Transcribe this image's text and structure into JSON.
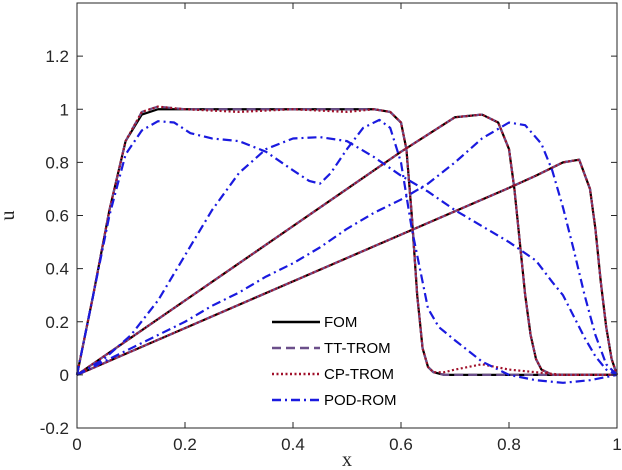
{
  "chart_data": {
    "type": "line",
    "xlabel": "x",
    "ylabel": "u",
    "xlim": [
      0,
      1
    ],
    "ylim": [
      -0.2,
      1.4
    ],
    "xticks": [
      0,
      0.2,
      0.4,
      0.6,
      0.8,
      1
    ],
    "yticks": [
      -0.2,
      0,
      0.2,
      0.4,
      0.6,
      0.8,
      1,
      1.2
    ],
    "xtick_labels": [
      "0",
      "0.2",
      "0.4",
      "0.6",
      "0.8",
      "1"
    ],
    "ytick_labels": [
      "-0.2",
      "0",
      "0.2",
      "0.4",
      "0.6",
      "0.8",
      "1",
      "1.2"
    ],
    "grid": false,
    "legend_position": "bottom-center",
    "legend": [
      {
        "name": "FOM",
        "color": "#000000",
        "dash": "solid"
      },
      {
        "name": "TT-TROM",
        "color": "#6b4f8a",
        "dash": "dashed"
      },
      {
        "name": "CP-TROM",
        "color": "#a0102a",
        "dash": "dotted"
      },
      {
        "name": "POD-ROM",
        "color": "#1a1adf",
        "dash": "dashdot"
      }
    ],
    "series": [
      {
        "name": "FOM",
        "time": "t1",
        "color": "#000000",
        "dash": "solid",
        "x": [
          0,
          0.03,
          0.06,
          0.09,
          0.12,
          0.15,
          0.2,
          0.3,
          0.4,
          0.5,
          0.55,
          0.58,
          0.6,
          0.61,
          0.62,
          0.63,
          0.64,
          0.65,
          0.66,
          0.68,
          0.7,
          0.8,
          0.9,
          1.0
        ],
        "y": [
          0,
          0.3,
          0.62,
          0.88,
          0.98,
          1.0,
          1.0,
          1.0,
          1.0,
          1.0,
          1.0,
          0.99,
          0.95,
          0.85,
          0.6,
          0.3,
          0.1,
          0.03,
          0.01,
          0,
          0,
          0,
          0,
          0
        ]
      },
      {
        "name": "FOM",
        "time": "t2",
        "color": "#000000",
        "dash": "solid",
        "x": [
          0,
          0.05,
          0.1,
          0.2,
          0.3,
          0.4,
          0.5,
          0.6,
          0.7,
          0.75,
          0.78,
          0.8,
          0.81,
          0.82,
          0.83,
          0.84,
          0.85,
          0.86,
          0.88,
          0.9,
          1.0
        ],
        "y": [
          0,
          0.07,
          0.14,
          0.28,
          0.42,
          0.56,
          0.7,
          0.84,
          0.97,
          0.98,
          0.95,
          0.85,
          0.7,
          0.5,
          0.3,
          0.15,
          0.06,
          0.02,
          0,
          0,
          0
        ]
      },
      {
        "name": "FOM",
        "time": "t3",
        "color": "#000000",
        "dash": "solid",
        "x": [
          0,
          0.1,
          0.2,
          0.3,
          0.4,
          0.5,
          0.6,
          0.7,
          0.8,
          0.85,
          0.9,
          0.93,
          0.95,
          0.96,
          0.97,
          0.98,
          0.99,
          1.0
        ],
        "y": [
          0,
          0.088,
          0.176,
          0.264,
          0.352,
          0.44,
          0.528,
          0.616,
          0.704,
          0.75,
          0.8,
          0.81,
          0.7,
          0.55,
          0.35,
          0.18,
          0.06,
          0
        ]
      },
      {
        "name": "TT-TROM",
        "time": "t1",
        "color": "#6b4f8a",
        "dash": "dashed",
        "x": [
          0,
          0.03,
          0.06,
          0.09,
          0.12,
          0.15,
          0.2,
          0.3,
          0.4,
          0.5,
          0.55,
          0.58,
          0.6,
          0.61,
          0.62,
          0.63,
          0.64,
          0.65,
          0.66,
          0.68,
          0.7,
          0.8,
          0.9,
          1.0
        ],
        "y": [
          0,
          0.3,
          0.62,
          0.88,
          0.99,
          1.01,
          1.0,
          1.0,
          1.0,
          1.0,
          1.0,
          0.99,
          0.95,
          0.85,
          0.6,
          0.3,
          0.1,
          0.03,
          0.01,
          0,
          0,
          0,
          0,
          0
        ]
      },
      {
        "name": "TT-TROM",
        "time": "t2",
        "color": "#6b4f8a",
        "dash": "dashed",
        "x": [
          0,
          0.05,
          0.1,
          0.2,
          0.3,
          0.4,
          0.5,
          0.6,
          0.7,
          0.75,
          0.78,
          0.8,
          0.81,
          0.82,
          0.83,
          0.84,
          0.85,
          0.86,
          0.88,
          0.9,
          1.0
        ],
        "y": [
          0,
          0.07,
          0.14,
          0.28,
          0.42,
          0.56,
          0.7,
          0.84,
          0.97,
          0.98,
          0.95,
          0.85,
          0.7,
          0.5,
          0.3,
          0.15,
          0.06,
          0.02,
          0,
          0,
          0
        ]
      },
      {
        "name": "TT-TROM",
        "time": "t3",
        "color": "#6b4f8a",
        "dash": "dashed",
        "x": [
          0,
          0.1,
          0.2,
          0.3,
          0.4,
          0.5,
          0.6,
          0.7,
          0.8,
          0.85,
          0.9,
          0.93,
          0.95,
          0.96,
          0.97,
          0.98,
          0.99,
          1.0
        ],
        "y": [
          0,
          0.088,
          0.176,
          0.264,
          0.352,
          0.44,
          0.528,
          0.616,
          0.704,
          0.75,
          0.8,
          0.81,
          0.7,
          0.55,
          0.35,
          0.18,
          0.06,
          0
        ]
      },
      {
        "name": "CP-TROM",
        "time": "t1",
        "color": "#a0102a",
        "dash": "dotted",
        "x": [
          0,
          0.03,
          0.06,
          0.09,
          0.12,
          0.15,
          0.2,
          0.3,
          0.4,
          0.5,
          0.55,
          0.58,
          0.6,
          0.61,
          0.62,
          0.63,
          0.64,
          0.65,
          0.66,
          0.68,
          0.7,
          0.75,
          0.8,
          0.9,
          1.0
        ],
        "y": [
          0,
          0.3,
          0.62,
          0.88,
          0.99,
          1.01,
          1.0,
          0.99,
          1.0,
          0.99,
          1.0,
          0.99,
          0.95,
          0.85,
          0.6,
          0.3,
          0.1,
          0.03,
          0.01,
          0.01,
          0.02,
          0.04,
          0.02,
          0,
          0
        ]
      },
      {
        "name": "CP-TROM",
        "time": "t2",
        "color": "#a0102a",
        "dash": "dotted",
        "x": [
          0,
          0.05,
          0.1,
          0.2,
          0.3,
          0.4,
          0.5,
          0.6,
          0.7,
          0.75,
          0.78,
          0.8,
          0.81,
          0.82,
          0.83,
          0.84,
          0.85,
          0.86,
          0.88,
          0.9,
          1.0
        ],
        "y": [
          0,
          0.07,
          0.14,
          0.28,
          0.42,
          0.56,
          0.7,
          0.84,
          0.97,
          0.98,
          0.95,
          0.85,
          0.7,
          0.5,
          0.3,
          0.15,
          0.06,
          0.02,
          0,
          0,
          0
        ]
      },
      {
        "name": "CP-TROM",
        "time": "t3",
        "color": "#a0102a",
        "dash": "dotted",
        "x": [
          0,
          0.1,
          0.2,
          0.3,
          0.4,
          0.5,
          0.6,
          0.7,
          0.8,
          0.85,
          0.9,
          0.93,
          0.95,
          0.96,
          0.97,
          0.98,
          0.99,
          1.0
        ],
        "y": [
          0,
          0.088,
          0.176,
          0.264,
          0.352,
          0.44,
          0.528,
          0.616,
          0.704,
          0.75,
          0.8,
          0.81,
          0.7,
          0.55,
          0.35,
          0.18,
          0.06,
          0
        ]
      },
      {
        "name": "POD-ROM",
        "time": "t1",
        "color": "#1a1adf",
        "dash": "dashdot",
        "x": [
          0,
          0.03,
          0.06,
          0.09,
          0.12,
          0.15,
          0.18,
          0.21,
          0.25,
          0.3,
          0.35,
          0.4,
          0.43,
          0.45,
          0.47,
          0.5,
          0.53,
          0.56,
          0.58,
          0.6,
          0.62,
          0.64,
          0.65,
          0.67,
          0.7,
          0.75,
          0.8,
          0.85,
          0.9,
          0.95,
          1.0
        ],
        "y": [
          0,
          0.3,
          0.6,
          0.83,
          0.92,
          0.955,
          0.95,
          0.91,
          0.89,
          0.88,
          0.84,
          0.77,
          0.73,
          0.72,
          0.76,
          0.85,
          0.93,
          0.96,
          0.93,
          0.8,
          0.55,
          0.35,
          0.25,
          0.18,
          0.13,
          0.05,
          0.0,
          -0.02,
          -0.03,
          -0.02,
          0
        ]
      },
      {
        "name": "POD-ROM",
        "time": "t2",
        "color": "#1a1adf",
        "dash": "dashdot",
        "x": [
          0,
          0.05,
          0.1,
          0.15,
          0.2,
          0.25,
          0.3,
          0.35,
          0.4,
          0.45,
          0.5,
          0.55,
          0.6,
          0.65,
          0.7,
          0.75,
          0.8,
          0.85,
          0.88,
          0.9,
          0.92,
          0.94,
          0.96,
          0.98,
          1.0
        ],
        "y": [
          0,
          0.06,
          0.15,
          0.28,
          0.45,
          0.62,
          0.76,
          0.85,
          0.89,
          0.895,
          0.88,
          0.82,
          0.75,
          0.69,
          0.62,
          0.56,
          0.5,
          0.43,
          0.35,
          0.3,
          0.22,
          0.14,
          0.07,
          0.02,
          0
        ]
      },
      {
        "name": "POD-ROM",
        "time": "t3",
        "color": "#1a1adf",
        "dash": "dashdot",
        "x": [
          0,
          0.05,
          0.1,
          0.15,
          0.2,
          0.25,
          0.3,
          0.35,
          0.4,
          0.45,
          0.5,
          0.55,
          0.6,
          0.65,
          0.7,
          0.75,
          0.8,
          0.83,
          0.86,
          0.88,
          0.9,
          0.92,
          0.94,
          0.96,
          0.98,
          1.0
        ],
        "y": [
          0,
          0.05,
          0.1,
          0.15,
          0.2,
          0.26,
          0.31,
          0.37,
          0.42,
          0.48,
          0.55,
          0.61,
          0.66,
          0.72,
          0.8,
          0.89,
          0.95,
          0.94,
          0.87,
          0.77,
          0.63,
          0.47,
          0.3,
          0.15,
          0.04,
          0
        ]
      }
    ]
  }
}
